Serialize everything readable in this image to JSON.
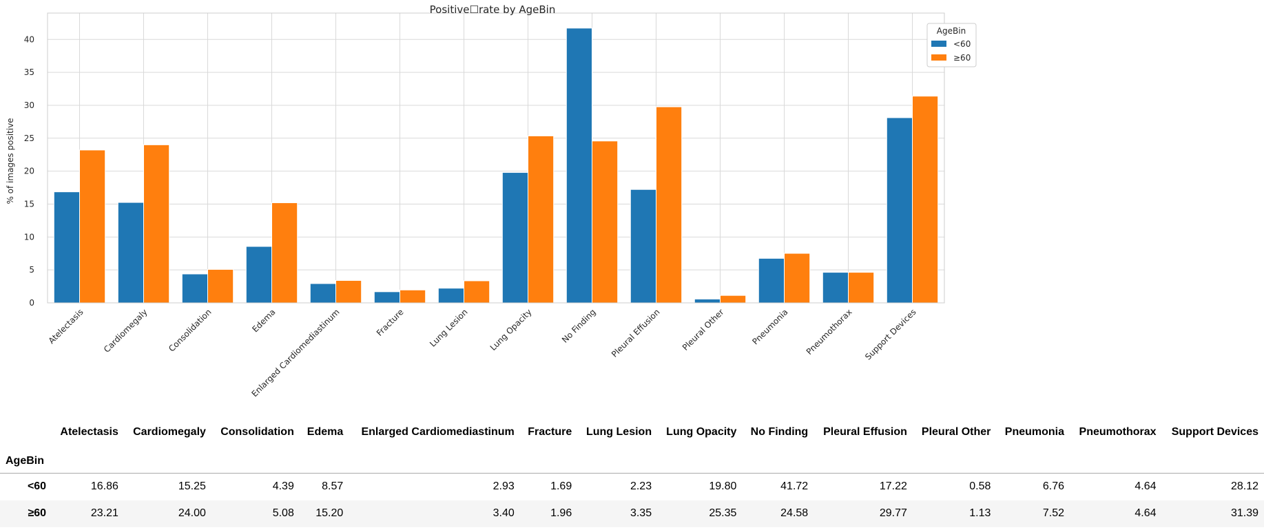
{
  "chart_data": {
    "type": "bar",
    "title": "Positive☐rate by AgeBin",
    "xlabel": "",
    "ylabel": "% of images positive",
    "ylim": [
      0,
      44
    ],
    "yticks": [
      0,
      5,
      10,
      15,
      20,
      25,
      30,
      35,
      40
    ],
    "grid": true,
    "legend": {
      "title": "AgeBin",
      "position": "top-right"
    },
    "categories": [
      "Atelectasis",
      "Cardiomegaly",
      "Consolidation",
      "Edema",
      "Enlarged Cardiomediastinum",
      "Fracture",
      "Lung Lesion",
      "Lung Opacity",
      "No Finding",
      "Pleural Effusion",
      "Pleural Other",
      "Pneumonia",
      "Pneumothorax",
      "Support Devices"
    ],
    "series": [
      {
        "name": "<60",
        "color": "#1f77b4",
        "values": [
          16.86,
          15.25,
          4.39,
          8.57,
          2.93,
          1.69,
          2.23,
          19.8,
          41.72,
          17.22,
          0.58,
          6.76,
          4.64,
          28.12
        ]
      },
      {
        "name": "≥60",
        "color": "#ff7f0e",
        "values": [
          23.21,
          24.0,
          5.08,
          15.2,
          3.4,
          1.96,
          3.35,
          25.35,
          24.58,
          29.77,
          1.13,
          7.52,
          4.64,
          31.39
        ]
      }
    ]
  },
  "table": {
    "index_name": "AgeBin",
    "columns": [
      "Atelectasis",
      "Cardiomegaly",
      "Consolidation",
      "Edema",
      "Enlarged Cardiomediastinum",
      "Fracture",
      "Lung Lesion",
      "Lung Opacity",
      "No Finding",
      "Pleural Effusion",
      "Pleural Other",
      "Pneumonia",
      "Pneumothorax",
      "Support Devices"
    ],
    "rows": [
      {
        "label": "<60",
        "values": [
          "16.86",
          "15.25",
          "4.39",
          "8.57",
          "2.93",
          "1.69",
          "2.23",
          "19.80",
          "41.72",
          "17.22",
          "0.58",
          "6.76",
          "4.64",
          "28.12"
        ]
      },
      {
        "label": "≥60",
        "values": [
          "23.21",
          "24.00",
          "5.08",
          "15.20",
          "3.40",
          "1.96",
          "3.35",
          "25.35",
          "24.58",
          "29.77",
          "1.13",
          "7.52",
          "4.64",
          "31.39"
        ]
      }
    ]
  }
}
